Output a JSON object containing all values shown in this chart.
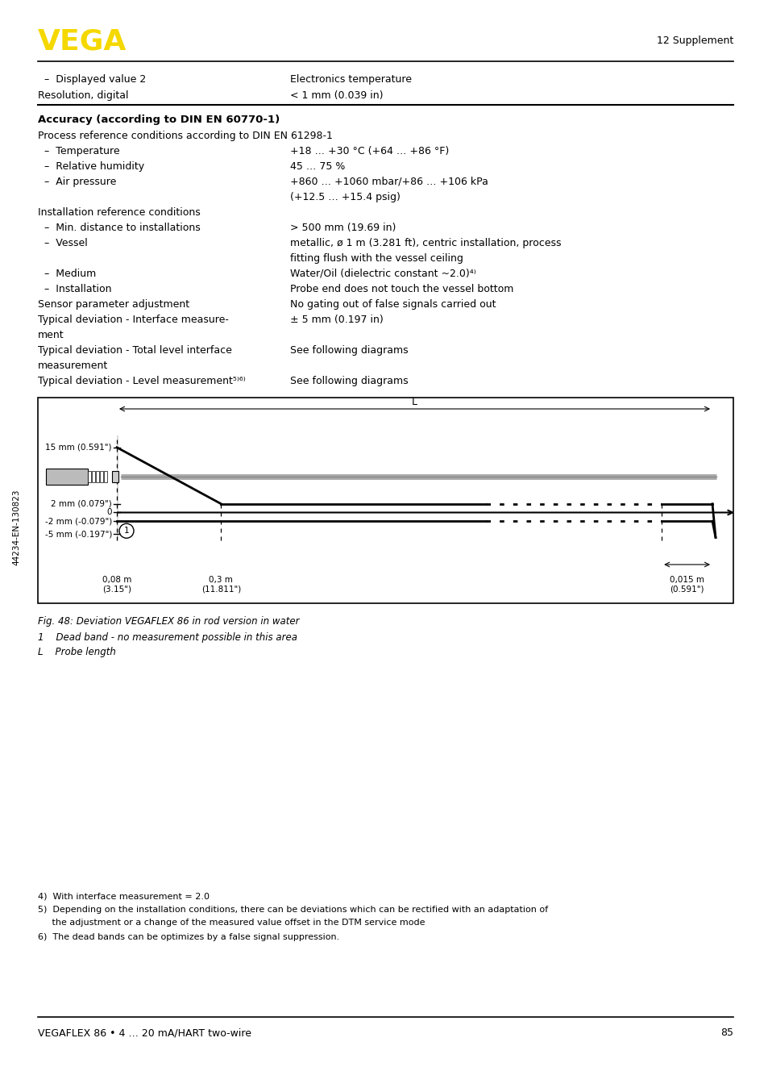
{
  "page_bg": "#ffffff",
  "vega_color": "#f5d800",
  "header_text": "12 Supplement",
  "footer_text": "VEGAFLEX 86 • 4 … 20 mA/HART two-wire",
  "footer_page": "85",
  "table_rows": [
    [
      "  –  Displayed value 2",
      "Electronics temperature"
    ],
    [
      "Resolution, digital",
      "< 1 mm (0.039 in)"
    ]
  ],
  "section_title": "Accuracy (according to DIN EN 60770-1)",
  "accuracy_rows": [
    [
      "Process reference conditions according to DIN EN 61298-1",
      ""
    ],
    [
      "  –  Temperature",
      "+18 … +30 °C (+64 … +86 °F)"
    ],
    [
      "  –  Relative humidity",
      "45 … 75 %"
    ],
    [
      "  –  Air pressure",
      "+860 … +1060 mbar/+86 … +106 kPa\n(+12.5 … +15.4 psig)"
    ],
    [
      "Installation reference conditions",
      ""
    ],
    [
      "  –  Min. distance to installations",
      "> 500 mm (19.69 in)"
    ],
    [
      "  –  Vessel",
      "metallic, ø 1 m (3.281 ft), centric installation, process\nfitting flush with the vessel ceiling"
    ],
    [
      "  –  Medium",
      "Water/Oil (dielectric constant ~2.0)⁴⁾"
    ],
    [
      "  –  Installation",
      "Probe end does not touch the vessel bottom"
    ],
    [
      "Sensor parameter adjustment",
      "No gating out of false signals carried out"
    ],
    [
      "Typical deviation - Interface measure-\nment",
      "± 5 mm (0.197 in)"
    ],
    [
      "Typical deviation - Total level interface\nmeasurement",
      "See following diagrams"
    ],
    [
      "Typical deviation - Level measurement⁵⁾⁶⁾",
      "See following diagrams"
    ]
  ],
  "fig_caption": "Fig. 48: Deviation VEGAFLEX 86 in rod version in water",
  "fig_note1": "1    Dead band - no measurement possible in this area",
  "fig_note2": "L    Probe length",
  "footnote4": "4)  With interface measurement = 2.0",
  "footnote5_line1": "5)  Depending on the installation conditions, there can be deviations which can be rectified with an adaptation of",
  "footnote5_line2": "     the adjustment or a change of the measured value offset in the DTM service mode",
  "footnote6": "6)  The dead bands can be optimizes by a false signal suppression.",
  "doc_number": "44234-EN-130823"
}
